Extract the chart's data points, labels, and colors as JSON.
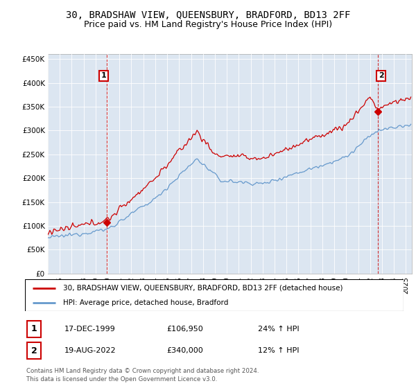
{
  "title": "30, BRADSHAW VIEW, QUEENSBURY, BRADFORD, BD13 2FF",
  "subtitle": "Price paid vs. HM Land Registry's House Price Index (HPI)",
  "title_fontsize": 10,
  "subtitle_fontsize": 9,
  "ylabel_ticks": [
    "£0",
    "£50K",
    "£100K",
    "£150K",
    "£200K",
    "£250K",
    "£300K",
    "£350K",
    "£400K",
    "£450K"
  ],
  "ytick_values": [
    0,
    50000,
    100000,
    150000,
    200000,
    250000,
    300000,
    350000,
    400000,
    450000
  ],
  "ylim": [
    0,
    460000
  ],
  "xlim_start": 1995.0,
  "xlim_end": 2025.5,
  "red_line_color": "#cc0000",
  "blue_line_color": "#6699cc",
  "plot_bg_color": "#dce6f1",
  "marker_color": "#cc0000",
  "annotation_box_color": "#cc0000",
  "grid_color": "#ffffff",
  "background_color": "#ffffff",
  "legend_label_red": "30, BRADSHAW VIEW, QUEENSBURY, BRADFORD, BD13 2FF (detached house)",
  "legend_label_blue": "HPI: Average price, detached house, Bradford",
  "transaction1_date": "17-DEC-1999",
  "transaction1_price": "£106,950",
  "transaction1_hpi": "24% ↑ HPI",
  "transaction2_date": "19-AUG-2022",
  "transaction2_price": "£340,000",
  "transaction2_hpi": "12% ↑ HPI",
  "footnote1": "Contains HM Land Registry data © Crown copyright and database right 2024.",
  "footnote2": "This data is licensed under the Open Government Licence v3.0."
}
